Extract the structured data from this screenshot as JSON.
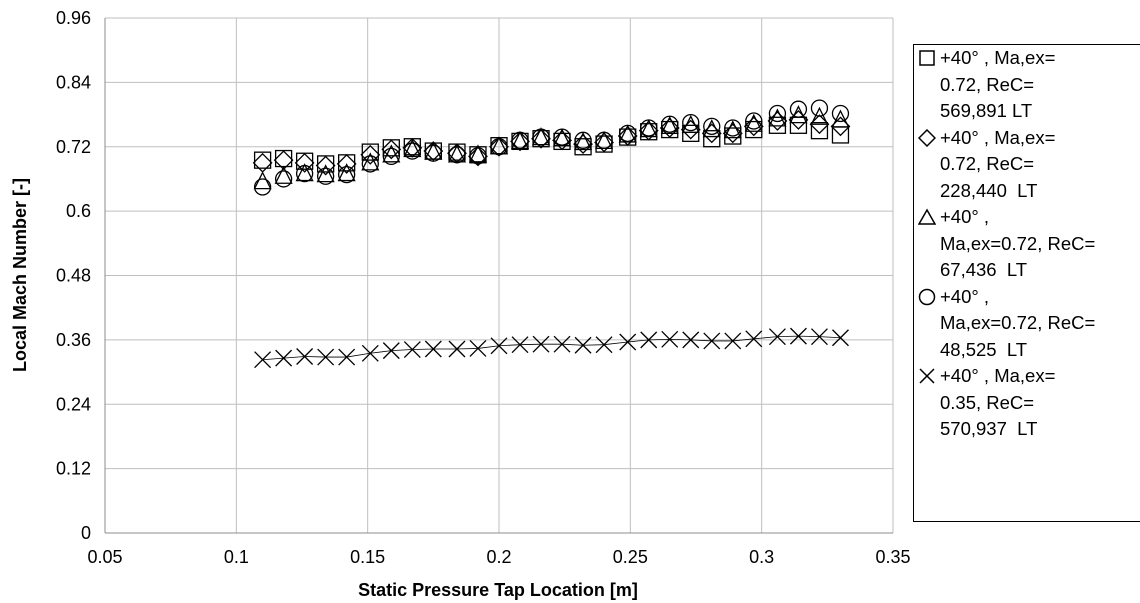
{
  "chart_data": {
    "type": "scatter",
    "title": "",
    "xlabel": "Static Pressure Tap Location [m]",
    "ylabel": "Local Mach Number [-]",
    "xlim": [
      0.05,
      0.35
    ],
    "ylim": [
      0,
      0.96
    ],
    "x_ticks": [
      "0.05",
      "0.1",
      "0.15",
      "0.2",
      "0.25",
      "0.3",
      "0.35"
    ],
    "y_ticks": [
      "0",
      "0.12",
      "0.24",
      "0.36",
      "0.48",
      "0.6",
      "0.72",
      "0.84",
      "0.96"
    ],
    "grid": true,
    "legend_position": "right",
    "x": [
      0.11,
      0.118,
      0.126,
      0.134,
      0.142,
      0.151,
      0.159,
      0.167,
      0.175,
      0.184,
      0.192,
      0.2,
      0.208,
      0.216,
      0.224,
      0.232,
      0.24,
      0.249,
      0.257,
      0.265,
      0.273,
      0.281,
      0.289,
      0.297,
      0.306,
      0.314,
      0.322,
      0.33
    ],
    "series": [
      {
        "name": "+40° , Ma,ex= 0.72, ReC= 569,891 LT",
        "marker": "square",
        "values": [
          0.695,
          0.698,
          0.693,
          0.688,
          0.69,
          0.71,
          0.718,
          0.72,
          0.712,
          0.71,
          0.705,
          0.722,
          0.73,
          0.735,
          0.73,
          0.72,
          0.725,
          0.738,
          0.748,
          0.752,
          0.745,
          0.735,
          0.74,
          0.752,
          0.76,
          0.76,
          0.75,
          0.742
        ]
      },
      {
        "name": "+40° , Ma,ex= 0.72, ReC= 228,440 LT",
        "marker": "diamond",
        "values": [
          0.69,
          0.695,
          0.69,
          0.685,
          0.688,
          0.705,
          0.715,
          0.718,
          0.712,
          0.708,
          0.702,
          0.72,
          0.73,
          0.735,
          0.732,
          0.725,
          0.728,
          0.74,
          0.75,
          0.755,
          0.752,
          0.745,
          0.745,
          0.758,
          0.768,
          0.77,
          0.762,
          0.758
        ]
      },
      {
        "name": "+40° , Ma,ex=0.72, ReC= 67,436 LT",
        "marker": "triangle",
        "values": [
          0.655,
          0.665,
          0.67,
          0.668,
          0.67,
          0.69,
          0.705,
          0.715,
          0.71,
          0.705,
          0.705,
          0.72,
          0.73,
          0.737,
          0.735,
          0.728,
          0.73,
          0.742,
          0.752,
          0.758,
          0.76,
          0.752,
          0.75,
          0.762,
          0.772,
          0.778,
          0.775,
          0.77
        ]
      },
      {
        "name": "+40° , Ma,ex=0.72, ReC= 48,525 LT",
        "marker": "circle",
        "values": [
          0.645,
          0.66,
          0.67,
          0.665,
          0.668,
          0.688,
          0.702,
          0.712,
          0.708,
          0.705,
          0.703,
          0.72,
          0.732,
          0.738,
          0.738,
          0.732,
          0.732,
          0.745,
          0.755,
          0.762,
          0.765,
          0.758,
          0.755,
          0.768,
          0.782,
          0.79,
          0.792,
          0.782
        ]
      },
      {
        "name": "+40° , Ma,ex= 0.35, ReC= 570,937 LT",
        "marker": "x",
        "values": [
          0.323,
          0.326,
          0.329,
          0.328,
          0.328,
          0.335,
          0.34,
          0.342,
          0.343,
          0.343,
          0.344,
          0.349,
          0.351,
          0.352,
          0.352,
          0.35,
          0.351,
          0.356,
          0.36,
          0.361,
          0.36,
          0.358,
          0.358,
          0.362,
          0.366,
          0.367,
          0.366,
          0.364
        ]
      }
    ]
  },
  "legend_lines": [
    "+40° , Ma,ex=\n0.72, ReC=\n569,891 LT",
    "+40° , Ma,ex=\n0.72, ReC=\n228,440  LT",
    "+40° ,\nMa,ex=0.72, ReC=\n67,436  LT",
    "+40° ,\nMa,ex=0.72, ReC=\n48,525  LT",
    "+40° , Ma,ex=\n0.35, ReC=\n570,937  LT"
  ]
}
